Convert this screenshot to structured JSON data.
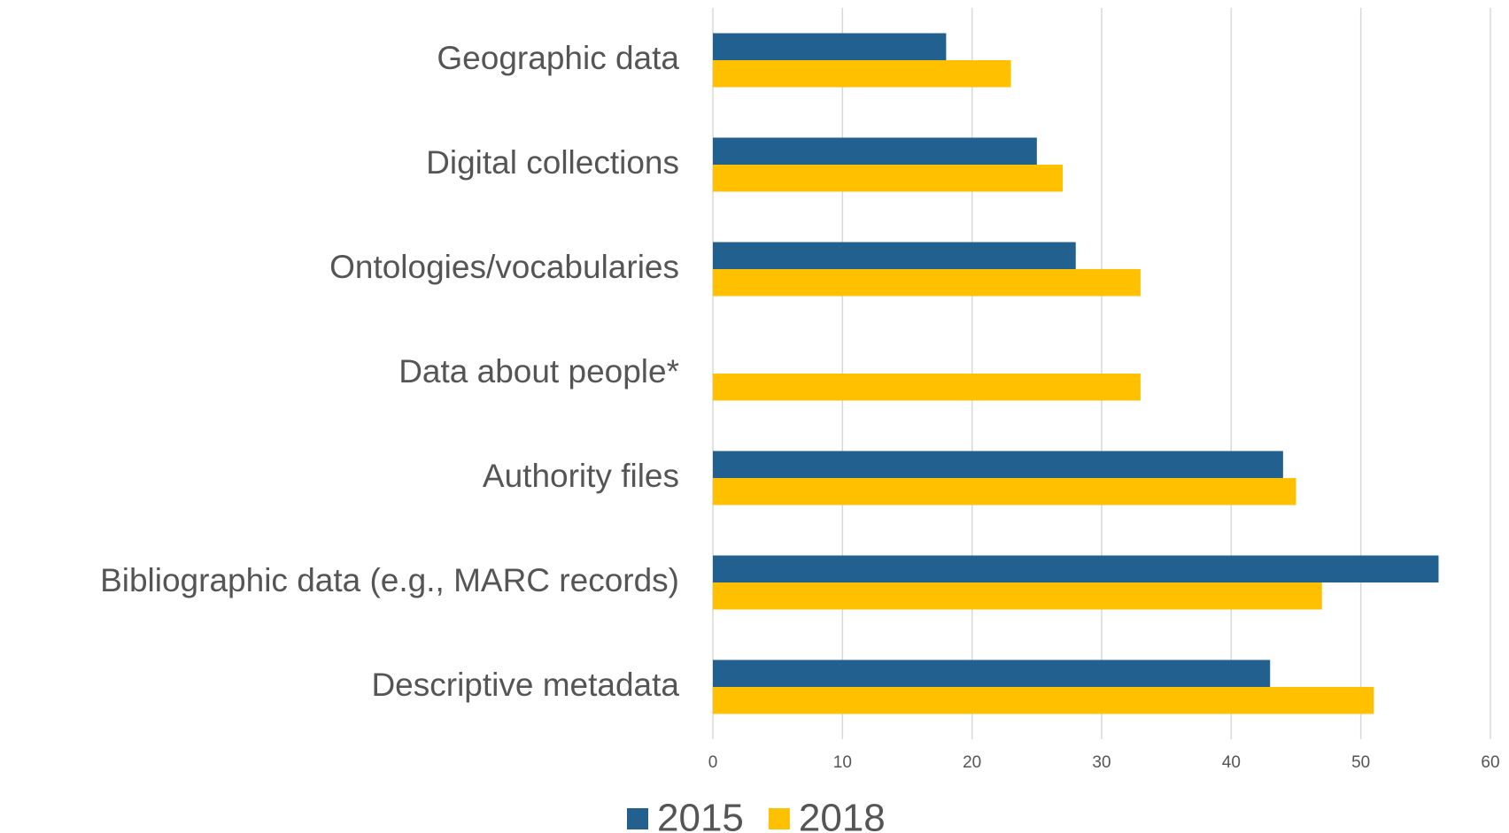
{
  "chart_data": {
    "type": "bar",
    "orientation": "horizontal",
    "categories": [
      "Geographic data",
      "Digital collections",
      "Ontologies/vocabularies",
      "Data about people*",
      "Authority files",
      "Bibliographic data (e.g., MARC records)",
      "Descriptive metadata"
    ],
    "series": [
      {
        "name": "2015",
        "color": "#22608f",
        "values": [
          18,
          25,
          28,
          null,
          44,
          56,
          43
        ]
      },
      {
        "name": "2018",
        "color": "#ffc000",
        "values": [
          23,
          27,
          33,
          33,
          45,
          47,
          51
        ]
      }
    ],
    "xlim": [
      0,
      60
    ],
    "xticks": [
      0,
      10,
      20,
      30,
      40,
      50,
      60
    ],
    "grid": true,
    "legend": "bottom"
  }
}
